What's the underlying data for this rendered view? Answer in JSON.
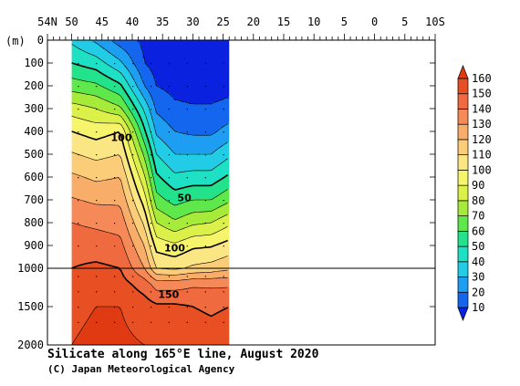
{
  "chart_data": {
    "type": "heatmap",
    "title": "Silicate along 165°E line, August 2020",
    "credit": "(C) Japan Meteorological Agency",
    "ylabel": "(m)",
    "x_ticks": [
      "54N",
      "50",
      "45",
      "40",
      "35",
      "30",
      "25",
      "20",
      "15",
      "10",
      "5",
      "0",
      "5",
      "10S"
    ],
    "x_tick_lats": [
      54,
      50,
      45,
      40,
      35,
      30,
      25,
      20,
      15,
      10,
      5,
      0,
      -5,
      -10
    ],
    "upper_y_ticks": [
      0,
      100,
      200,
      300,
      400,
      500,
      600,
      700,
      800,
      900
    ],
    "lower_y_ticks": [
      1000,
      1500,
      2000
    ],
    "xlim": [
      54,
      -10
    ],
    "ylim_upper": [
      0,
      1000
    ],
    "ylim_lower": [
      1000,
      2000
    ],
    "data_lat_range": [
      50,
      24
    ],
    "colorbar_levels": [
      10,
      20,
      30,
      40,
      50,
      60,
      70,
      80,
      90,
      100,
      110,
      120,
      130,
      140,
      150,
      160
    ],
    "colorbar_colors": [
      "#0a22e0",
      "#1466ee",
      "#1e9ef2",
      "#22cce6",
      "#1ee0c4",
      "#22e28c",
      "#5ee84c",
      "#a6ea3a",
      "#dcf04a",
      "#f6f46a",
      "#fbe684",
      "#fbcd78",
      "#f8ad68",
      "#f58a58",
      "#f06a40",
      "#e85024",
      "#e03a12"
    ],
    "contour_labels": [
      {
        "text": "100",
        "lat": 41.8,
        "depth": 425
      },
      {
        "text": "50",
        "lat": 31.4,
        "depth": 690
      },
      {
        "text": "100",
        "lat": 33.0,
        "depth": 910
      },
      {
        "text": "150",
        "lat": 34.0,
        "depth": 1340
      }
    ],
    "profiles_lat": [
      50,
      46,
      42,
      38,
      36,
      33,
      30,
      27,
      24
    ],
    "profiles": [
      [
        [
          0,
          38
        ],
        [
          100,
          50
        ],
        [
          200,
          65
        ],
        [
          300,
          85
        ],
        [
          400,
          100
        ],
        [
          600,
          122
        ],
        [
          800,
          140
        ],
        [
          900,
          146
        ],
        [
          1000,
          150
        ],
        [
          1500,
          158
        ],
        [
          2000,
          160
        ]
      ],
      [
        [
          0,
          28
        ],
        [
          100,
          45
        ],
        [
          200,
          62
        ],
        [
          300,
          80
        ],
        [
          400,
          96
        ],
        [
          600,
          118
        ],
        [
          800,
          138
        ],
        [
          1000,
          152
        ],
        [
          1500,
          160
        ],
        [
          2000,
          162
        ]
      ],
      [
        [
          0,
          15
        ],
        [
          100,
          32
        ],
        [
          200,
          52
        ],
        [
          300,
          72
        ],
        [
          400,
          100
        ],
        [
          600,
          120
        ],
        [
          800,
          136
        ],
        [
          1000,
          150
        ],
        [
          1500,
          160
        ],
        [
          2000,
          162
        ]
      ],
      [
        [
          0,
          8
        ],
        [
          100,
          10
        ],
        [
          200,
          20
        ],
        [
          300,
          38
        ],
        [
          400,
          52
        ],
        [
          500,
          68
        ],
        [
          600,
          82
        ],
        [
          700,
          95
        ],
        [
          800,
          108
        ],
        [
          900,
          120
        ],
        [
          1000,
          130
        ],
        [
          1200,
          145
        ],
        [
          1500,
          155
        ],
        [
          2000,
          160
        ]
      ],
      [
        [
          0,
          5
        ],
        [
          100,
          6
        ],
        [
          200,
          10
        ],
        [
          300,
          18
        ],
        [
          400,
          28
        ],
        [
          500,
          40
        ],
        [
          600,
          52
        ],
        [
          700,
          64
        ],
        [
          800,
          80
        ],
        [
          900,
          96
        ],
        [
          1000,
          110
        ],
        [
          1200,
          135
        ],
        [
          1500,
          152
        ],
        [
          2000,
          160
        ]
      ],
      [
        [
          0,
          5
        ],
        [
          100,
          5
        ],
        [
          200,
          7
        ],
        [
          300,
          12
        ],
        [
          400,
          20
        ],
        [
          500,
          30
        ],
        [
          600,
          42
        ],
        [
          700,
          56
        ],
        [
          800,
          72
        ],
        [
          900,
          92
        ],
        [
          1000,
          108
        ],
        [
          1200,
          135
        ],
        [
          1500,
          152
        ],
        [
          2000,
          158
        ]
      ],
      [
        [
          0,
          5
        ],
        [
          100,
          5
        ],
        [
          200,
          6
        ],
        [
          300,
          11
        ],
        [
          400,
          18
        ],
        [
          500,
          30
        ],
        [
          600,
          44
        ],
        [
          700,
          60
        ],
        [
          800,
          78
        ],
        [
          900,
          98
        ],
        [
          1000,
          112
        ],
        [
          1200,
          138
        ],
        [
          1500,
          150
        ],
        [
          2000,
          158
        ]
      ],
      [
        [
          0,
          5
        ],
        [
          100,
          5
        ],
        [
          200,
          6
        ],
        [
          300,
          11
        ],
        [
          400,
          18
        ],
        [
          500,
          30
        ],
        [
          600,
          44
        ],
        [
          700,
          60
        ],
        [
          800,
          80
        ],
        [
          900,
          99
        ],
        [
          1000,
          114
        ],
        [
          1200,
          138
        ],
        [
          1500,
          148
        ],
        [
          2000,
          156
        ]
      ],
      [
        [
          0,
          5
        ],
        [
          100,
          5
        ],
        [
          200,
          7
        ],
        [
          300,
          13
        ],
        [
          400,
          24
        ],
        [
          500,
          38
        ],
        [
          600,
          52
        ],
        [
          700,
          68
        ],
        [
          800,
          88
        ],
        [
          900,
          104
        ],
        [
          1000,
          118
        ],
        [
          1200,
          138
        ],
        [
          1500,
          150
        ],
        [
          2000,
          158
        ]
      ]
    ]
  }
}
